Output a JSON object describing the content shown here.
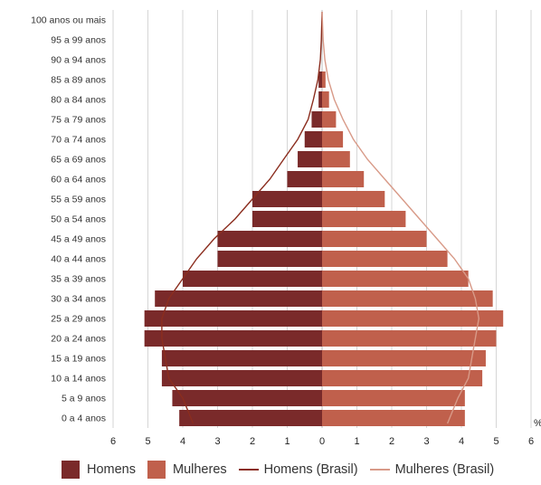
{
  "chart_data": {
    "type": "bar",
    "orientation": "horizontal-pyramid",
    "categories": [
      "0 a 4 anos",
      "5 a 9 anos",
      "10 a 14 anos",
      "15 a 19 anos",
      "20 a 24 anos",
      "25 a 29 anos",
      "30 a 34 anos",
      "35 a 39 anos",
      "40 a 44 anos",
      "45 a 49 anos",
      "50 a 54 anos",
      "55 a 59 anos",
      "60 a 64 anos",
      "65 a 69 anos",
      "70 a 74 anos",
      "75 a 79 anos",
      "80 a 84 anos",
      "85 a 89 anos",
      "90 a 94 anos",
      "95 a 99 anos",
      "100 anos ou mais"
    ],
    "series": [
      {
        "name": "Homens",
        "kind": "bar",
        "side": "left",
        "color": "#7a2a2a",
        "values": [
          4.1,
          4.3,
          4.6,
          4.6,
          5.1,
          5.1,
          4.8,
          4.0,
          3.0,
          3.0,
          2.0,
          2.0,
          1.0,
          0.7,
          0.5,
          0.3,
          0.1,
          0.1,
          0.0,
          0.0,
          0.0
        ]
      },
      {
        "name": "Mulheres",
        "kind": "bar",
        "side": "right",
        "color": "#c0604c",
        "values": [
          4.1,
          4.1,
          4.6,
          4.7,
          5.0,
          5.2,
          4.9,
          4.2,
          3.6,
          3.0,
          2.4,
          1.8,
          1.2,
          0.8,
          0.6,
          0.4,
          0.2,
          0.1,
          0.0,
          0.0,
          0.0
        ]
      },
      {
        "name": "Homens (Brasil)",
        "kind": "line",
        "side": "left",
        "color": "#8b2d1e",
        "values": [
          3.7,
          4.0,
          4.4,
          4.5,
          4.6,
          4.6,
          4.4,
          4.0,
          3.6,
          3.1,
          2.5,
          2.0,
          1.5,
          1.1,
          0.7,
          0.4,
          0.25,
          0.12,
          0.05,
          0.02,
          0.0
        ]
      },
      {
        "name": "Mulheres (Brasil)",
        "kind": "line",
        "side": "right",
        "color": "#d89a88",
        "values": [
          3.6,
          3.9,
          4.2,
          4.3,
          4.4,
          4.5,
          4.4,
          4.2,
          3.8,
          3.3,
          2.8,
          2.3,
          1.8,
          1.3,
          0.9,
          0.6,
          0.35,
          0.18,
          0.08,
          0.03,
          0.0
        ]
      }
    ],
    "x_ticks": [
      "6",
      "5",
      "4",
      "3",
      "2",
      "1",
      "0",
      "1",
      "2",
      "3",
      "4",
      "5",
      "6"
    ],
    "xunit": "%",
    "xlim": [
      -6,
      6
    ],
    "grid": true,
    "legend_position": "bottom"
  },
  "legend": {
    "items": [
      {
        "label": "Homens",
        "type": "swatch",
        "color": "#7a2a2a"
      },
      {
        "label": "Mulheres",
        "type": "swatch",
        "color": "#c0604c"
      },
      {
        "label": "Homens (Brasil)",
        "type": "line",
        "color": "#8b2d1e"
      },
      {
        "label": "Mulheres (Brasil)",
        "type": "line",
        "color": "#d89a88"
      }
    ]
  }
}
